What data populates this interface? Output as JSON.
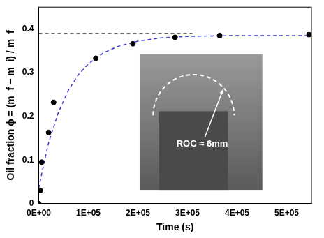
{
  "chart_data": {
    "type": "scatter",
    "x_label": "Time (s)",
    "y_label": "Oil fraction ϕ = (m_f − m_i) / m_f",
    "xlim": [
      0,
      550000
    ],
    "xticks": [
      {
        "value": 0,
        "label": "0E+00"
      },
      {
        "value": 100000,
        "label": "1E+05"
      },
      {
        "value": 200000,
        "label": "2E+05"
      },
      {
        "value": 300000,
        "label": "3E+05"
      },
      {
        "value": 400000,
        "label": "4E+05"
      },
      {
        "value": 500000,
        "label": "5E+05"
      }
    ],
    "ylim": [
      0,
      0.45
    ],
    "yticks": [
      0,
      0.1,
      0.2,
      0.3,
      0.4
    ],
    "grid": false,
    "annotations": [
      "ROC ≈ 6mm"
    ],
    "series": [
      {
        "type": "scatter",
        "color": "#000000",
        "marker": "circle",
        "x": [
          0,
          3000,
          6000,
          20000,
          30000,
          115000,
          190000,
          275000,
          365000,
          545000
        ],
        "values": [
          0,
          0.03,
          0.095,
          0.163,
          0.232,
          0.333,
          0.366,
          0.381,
          0.385,
          0.387
        ]
      },
      {
        "type": "line",
        "color": "#3b3bd6",
        "line_style": "dashed",
        "x": [
          0,
          10000,
          20000,
          40000,
          60000,
          80000,
          100000,
          130000,
          160000,
          200000,
          250000,
          300000,
          350000,
          400000,
          450000,
          500000,
          550000
        ],
        "values": [
          0.035,
          0.09,
          0.14,
          0.21,
          0.26,
          0.295,
          0.32,
          0.345,
          0.36,
          0.372,
          0.38,
          0.383,
          0.384,
          0.385,
          0.385,
          0.385,
          0.385
        ]
      },
      {
        "type": "line",
        "color": "#666666",
        "line_style": "dashed",
        "x": [
          0,
          310000
        ],
        "values": [
          0.39,
          0.39
        ]
      }
    ]
  }
}
